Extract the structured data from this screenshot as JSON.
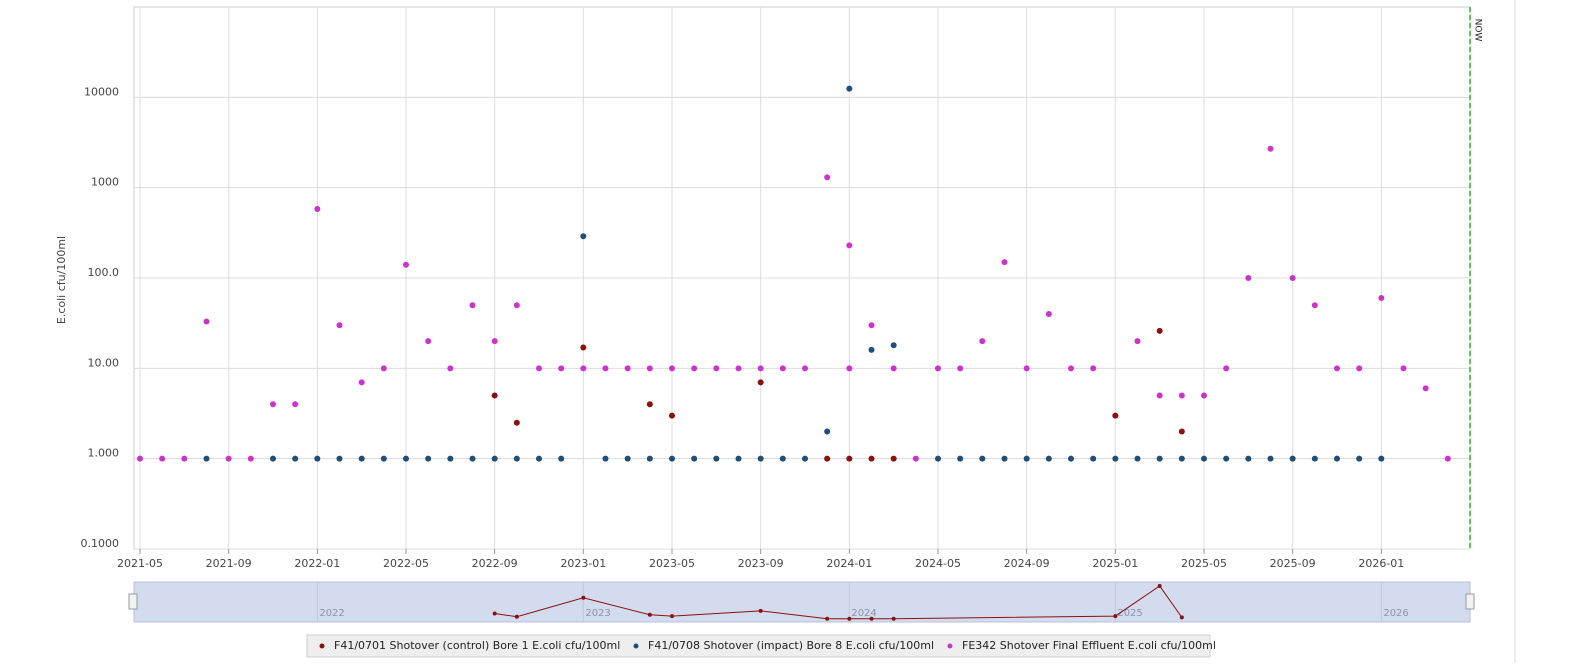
{
  "chart_data": {
    "type": "scatter",
    "y_label": "E.coli cfu/100ml",
    "log_y": true,
    "grid": true,
    "xlim": [
      "2021-05",
      "2026-05"
    ],
    "ylim": [
      0.1,
      100000
    ],
    "xticks": [
      "2021-05",
      "2021-09",
      "2022-01",
      "2022-05",
      "2022-09",
      "2023-01",
      "2023-05",
      "2023-09",
      "2024-01",
      "2024-05",
      "2024-09",
      "2025-01",
      "2025-05",
      "2025-09",
      "2026-01"
    ],
    "yticks": [
      {
        "value": 0.1,
        "label": "0.1000"
      },
      {
        "value": 1,
        "label": "1.000"
      },
      {
        "value": 10,
        "label": "10.00"
      },
      {
        "value": 100,
        "label": "100.0"
      },
      1000,
      10000
    ],
    "annotations": [
      {
        "text": "NOW",
        "x": "2026-05",
        "color": "#33aa33"
      }
    ],
    "navigator": {
      "ticks": [
        {
          "value": "2022-01",
          "label": "2022"
        },
        {
          "value": "2023-01",
          "label": "2023"
        },
        {
          "value": "2024-01",
          "label": "2024"
        },
        {
          "value": "2025-01",
          "label": "2025"
        },
        {
          "value": "2026-01",
          "label": "2026"
        }
      ]
    },
    "legend": "bottom",
    "series": [
      {
        "name": "F41/0701 Shotover (control) Bore 1 E.coli cfu/100ml",
        "color": "#8b1010",
        "x": [
          "2022-09",
          "2022-10",
          "2023-01",
          "2023-04",
          "2023-05",
          "2023-09",
          "2023-12",
          "2024-01",
          "2024-02",
          "2024-03",
          "2025-01",
          "2025-03",
          "2025-04"
        ],
        "values": [
          5,
          2.5,
          17,
          4,
          3,
          7,
          1,
          1,
          1,
          1,
          3,
          26,
          2
        ]
      },
      {
        "name": "F41/0708 Shotover (impact) Bore 8 E.coli cfu/100ml",
        "color": "#1f4e79",
        "x": [
          "2021-08",
          "2021-11",
          "2021-12",
          "2022-01",
          "2022-02",
          "2022-03",
          "2022-04",
          "2022-05",
          "2022-06",
          "2022-07",
          "2022-08",
          "2022-09",
          "2022-10",
          "2022-11",
          "2022-12",
          "2023-01",
          "2023-02",
          "2023-03",
          "2023-04",
          "2023-05",
          "2023-06",
          "2023-07",
          "2023-08",
          "2023-09",
          "2023-10",
          "2023-11",
          "2023-12",
          "2024-01",
          "2024-02",
          "2024-03",
          "2024-05",
          "2024-06",
          "2024-07",
          "2024-08",
          "2024-09",
          "2024-10",
          "2024-11",
          "2024-12",
          "2025-01",
          "2025-02",
          "2025-03",
          "2025-04",
          "2025-05",
          "2025-06",
          "2025-07",
          "2025-08",
          "2025-09",
          "2025-10",
          "2025-11",
          "2025-12",
          "2026-01"
        ],
        "values": [
          1,
          1,
          1,
          1,
          1,
          1,
          1,
          1,
          1,
          1,
          1,
          1,
          1,
          1,
          1,
          290,
          1,
          1,
          1,
          1,
          1,
          1,
          1,
          1,
          1,
          1,
          2,
          12500,
          16,
          18,
          1,
          1,
          1,
          1,
          1,
          1,
          1,
          1,
          1,
          1,
          1,
          1,
          1,
          1,
          1,
          1,
          1,
          1,
          1,
          1,
          1
        ]
      },
      {
        "name": "FE342 Shotover Final Effluent E.coli cfu/100ml",
        "color": "#cc33cc",
        "x": [
          "2021-05",
          "2021-06",
          "2021-07",
          "2021-08",
          "2021-09",
          "2021-10",
          "2021-11",
          "2021-12",
          "2022-01",
          "2022-02",
          "2022-03",
          "2022-04",
          "2022-05",
          "2022-06",
          "2022-07",
          "2022-08",
          "2022-09",
          "2022-10",
          "2022-11",
          "2022-12",
          "2023-01",
          "2023-02",
          "2023-03",
          "2023-04",
          "2023-05",
          "2023-06",
          "2023-07",
          "2023-08",
          "2023-09",
          "2023-10",
          "2023-11",
          "2023-12",
          "2024-01",
          "2024-01",
          "2024-02",
          "2024-03",
          "2024-04",
          "2024-05",
          "2024-06",
          "2024-07",
          "2024-08",
          "2024-09",
          "2024-10",
          "2024-11",
          "2024-12",
          "2025-02",
          "2025-03",
          "2025-04",
          "2025-05",
          "2025-06",
          "2025-07",
          "2025-08",
          "2025-09",
          "2025-10",
          "2025-11",
          "2025-12",
          "2026-01",
          "2026-02",
          "2026-03",
          "2026-04"
        ],
        "values": [
          1,
          1,
          1,
          33,
          1,
          1,
          4,
          4,
          580,
          30,
          7,
          10,
          140,
          20,
          10,
          50,
          20,
          50,
          10,
          10,
          10,
          10,
          10,
          10,
          10,
          10,
          10,
          10,
          10,
          10,
          10,
          1300,
          230,
          10,
          30,
          10,
          1,
          10,
          10,
          20,
          150,
          10,
          40,
          10,
          10,
          20,
          5,
          5,
          5,
          10,
          100,
          2700,
          100,
          50,
          10,
          10,
          60,
          10,
          6,
          1
        ]
      }
    ]
  }
}
